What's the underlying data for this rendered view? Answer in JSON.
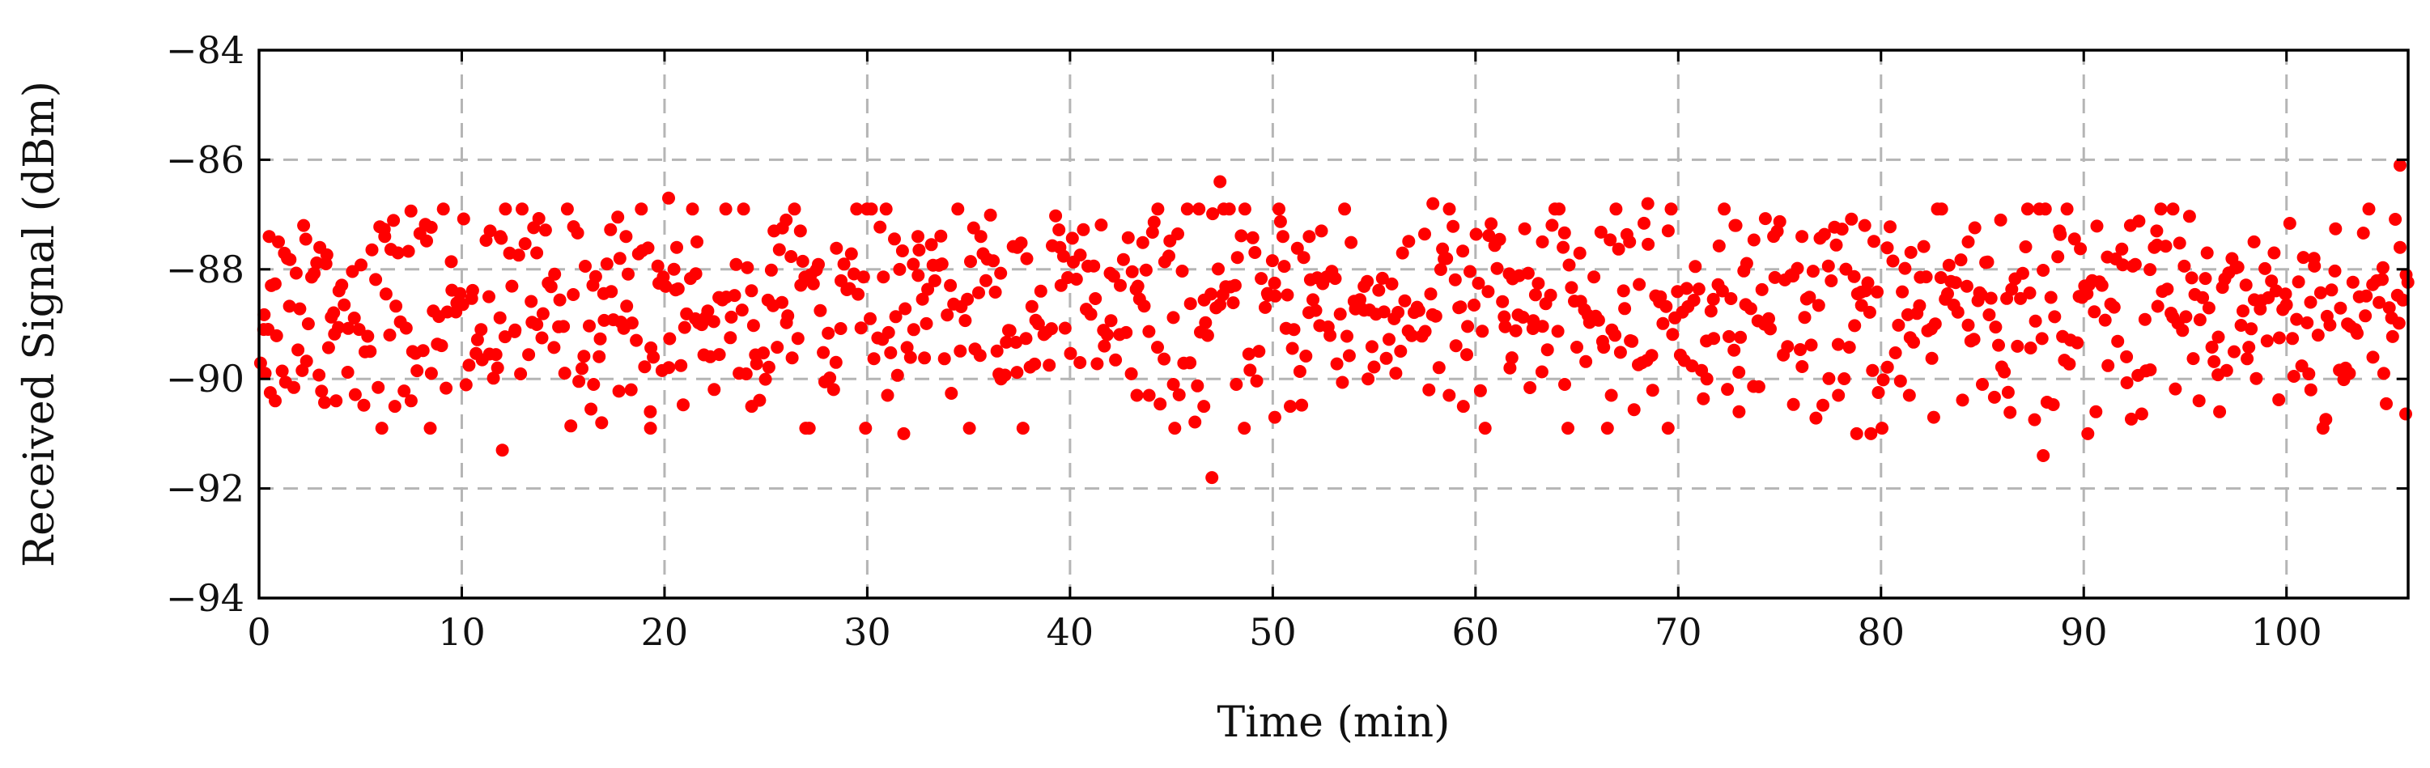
{
  "chart_data": {
    "type": "scatter",
    "title": "",
    "xlabel": "Time (min)",
    "ylabel": "Received Signal (dBm)",
    "xlim": [
      0,
      106
    ],
    "ylim": [
      -94,
      -84
    ],
    "x_ticks": [
      0,
      10,
      20,
      30,
      40,
      50,
      60,
      70,
      80,
      90,
      100
    ],
    "y_ticks": [
      -94,
      -92,
      -90,
      -88,
      -86,
      -84
    ],
    "x_tick_labels": [
      "0",
      "10",
      "20",
      "30",
      "40",
      "50",
      "60",
      "70",
      "80",
      "90",
      "100"
    ],
    "y_tick_labels": [
      "−94",
      "−92",
      "−90",
      "−88",
      "−86",
      "−84"
    ],
    "grid": true,
    "marker_color": "#ff0000",
    "distribution_summary": {
      "n_points": 1000,
      "x_range": [
        0,
        106
      ],
      "mean_dbm": -88.7,
      "spread_dbm": [
        -90.7,
        -87.0
      ]
    },
    "notable_points": [
      {
        "x": 0.5,
        "y": -87.4
      },
      {
        "x": 0.3,
        "y": -89.9
      },
      {
        "x": 0.8,
        "y": -90.4
      },
      {
        "x": 1.4,
        "y": -87.8
      },
      {
        "x": 2.2,
        "y": -87.2
      },
      {
        "x": 3.0,
        "y": -87.6
      },
      {
        "x": 3.3,
        "y": -87.9
      },
      {
        "x": 3.8,
        "y": -90.4
      },
      {
        "x": 6.2,
        "y": -87.4
      },
      {
        "x": 6.7,
        "y": -90.5
      },
      {
        "x": 7.5,
        "y": -90.4
      },
      {
        "x": 8.5,
        "y": -89.9
      },
      {
        "x": 11.4,
        "y": -87.3
      },
      {
        "x": 11.9,
        "y": -87.4
      },
      {
        "x": 12.0,
        "y": -91.3
      },
      {
        "x": 13.7,
        "y": -87.7
      },
      {
        "x": 16.5,
        "y": -90.1
      },
      {
        "x": 16.9,
        "y": -90.8
      },
      {
        "x": 17.8,
        "y": -87.8
      },
      {
        "x": 18.1,
        "y": -87.4
      },
      {
        "x": 19.3,
        "y": -90.6
      },
      {
        "x": 20.2,
        "y": -86.7
      },
      {
        "x": 20.6,
        "y": -87.6
      },
      {
        "x": 21.6,
        "y": -87.5
      },
      {
        "x": 24.3,
        "y": -90.5
      },
      {
        "x": 25.4,
        "y": -87.3
      },
      {
        "x": 26.0,
        "y": -87.1
      },
      {
        "x": 26.7,
        "y": -87.3
      },
      {
        "x": 31.0,
        "y": -90.3
      },
      {
        "x": 31.8,
        "y": -91.0
      },
      {
        "x": 32.5,
        "y": -87.4
      },
      {
        "x": 35.6,
        "y": -87.4
      },
      {
        "x": 36.6,
        "y": -90.0
      },
      {
        "x": 37.4,
        "y": -87.6
      },
      {
        "x": 39.5,
        "y": -87.6
      },
      {
        "x": 43.3,
        "y": -90.3
      },
      {
        "x": 43.9,
        "y": -90.3
      },
      {
        "x": 45.1,
        "y": -90.1
      },
      {
        "x": 46.6,
        "y": -90.5
      },
      {
        "x": 47.0,
        "y": -91.8
      },
      {
        "x": 47.4,
        "y": -86.4
      },
      {
        "x": 48.2,
        "y": -90.1
      },
      {
        "x": 50.1,
        "y": -90.7
      },
      {
        "x": 50.5,
        "y": -87.4
      },
      {
        "x": 51.8,
        "y": -87.4
      },
      {
        "x": 52.4,
        "y": -87.3
      },
      {
        "x": 54.7,
        "y": -90.0
      },
      {
        "x": 57.9,
        "y": -86.8
      },
      {
        "x": 58.7,
        "y": -90.3
      },
      {
        "x": 59.4,
        "y": -90.5
      },
      {
        "x": 61.7,
        "y": -89.8
      },
      {
        "x": 63.3,
        "y": -87.5
      },
      {
        "x": 64.4,
        "y": -90.1
      },
      {
        "x": 66.7,
        "y": -90.3
      },
      {
        "x": 67.6,
        "y": -87.5
      },
      {
        "x": 68.5,
        "y": -86.8
      },
      {
        "x": 69.5,
        "y": -90.9
      },
      {
        "x": 72.8,
        "y": -87.2
      },
      {
        "x": 73.0,
        "y": -90.6
      },
      {
        "x": 76.1,
        "y": -87.4
      },
      {
        "x": 77.9,
        "y": -90.3
      },
      {
        "x": 78.8,
        "y": -91.0
      },
      {
        "x": 79.2,
        "y": -87.2
      },
      {
        "x": 79.5,
        "y": -91.0
      },
      {
        "x": 81.4,
        "y": -90.3
      },
      {
        "x": 82.6,
        "y": -90.7
      },
      {
        "x": 84.3,
        "y": -87.5
      },
      {
        "x": 85.0,
        "y": -90.1
      },
      {
        "x": 85.9,
        "y": -87.1
      },
      {
        "x": 88.0,
        "y": -91.4
      },
      {
        "x": 88.8,
        "y": -87.3
      },
      {
        "x": 90.2,
        "y": -91.0
      },
      {
        "x": 90.6,
        "y": -90.6
      },
      {
        "x": 92.3,
        "y": -87.2
      },
      {
        "x": 93.6,
        "y": -87.3
      },
      {
        "x": 94.4,
        "y": -86.9
      },
      {
        "x": 96.7,
        "y": -90.6
      },
      {
        "x": 98.4,
        "y": -87.5
      },
      {
        "x": 101.2,
        "y": -90.2
      },
      {
        "x": 103.1,
        "y": -89.9
      },
      {
        "x": 104.8,
        "y": -89.9
      },
      {
        "x": 105.6,
        "y": -86.1
      },
      {
        "x": 105.6,
        "y": -87.6
      },
      {
        "x": 105.9,
        "y": -88.1
      }
    ]
  }
}
